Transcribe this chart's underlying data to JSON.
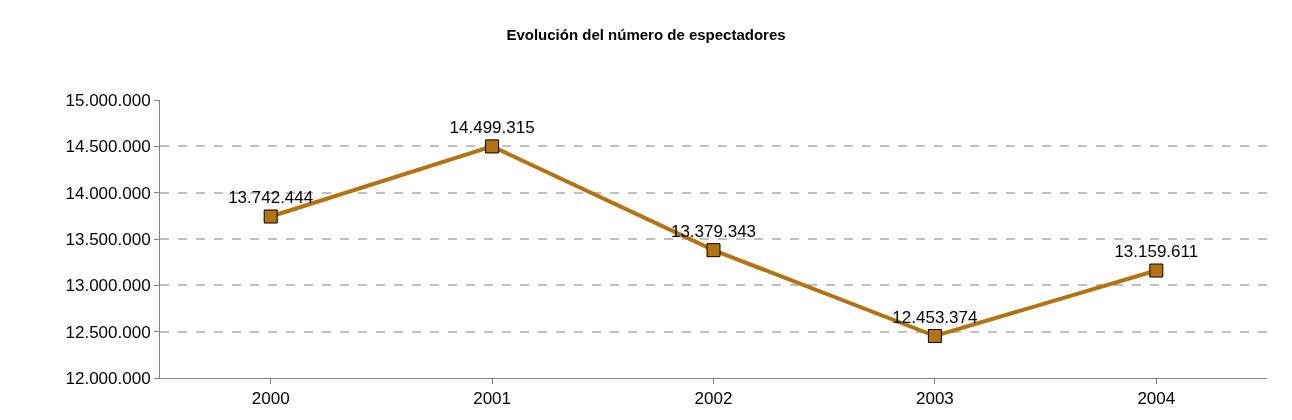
{
  "chart_data": {
    "type": "line",
    "title": "Evolución del número de espectadores",
    "categories": [
      "2000",
      "2001",
      "2002",
      "2003",
      "2004"
    ],
    "series": [
      {
        "color": "#b5730f",
        "values": [
          13742444,
          14499315,
          13379343,
          12453374,
          13159611
        ],
        "value_labels": [
          "13.742.444",
          "14.499.315",
          "13.379.343",
          "12.453.374",
          "13.159.611"
        ]
      }
    ],
    "ylim": [
      12000000,
      15000000
    ],
    "yticks": [
      {
        "value": 12000000,
        "label": "12.000.000"
      },
      {
        "value": 12500000,
        "label": "12.500.000"
      },
      {
        "value": 13000000,
        "label": "13.000.000"
      },
      {
        "value": 13500000,
        "label": "13.500.000"
      },
      {
        "value": 14000000,
        "label": "14.000.000"
      },
      {
        "value": 14500000,
        "label": "14.500.000"
      },
      {
        "value": 15000000,
        "label": "15.000.000"
      }
    ],
    "grid": "y",
    "marker": "square",
    "line_style": "solid"
  }
}
